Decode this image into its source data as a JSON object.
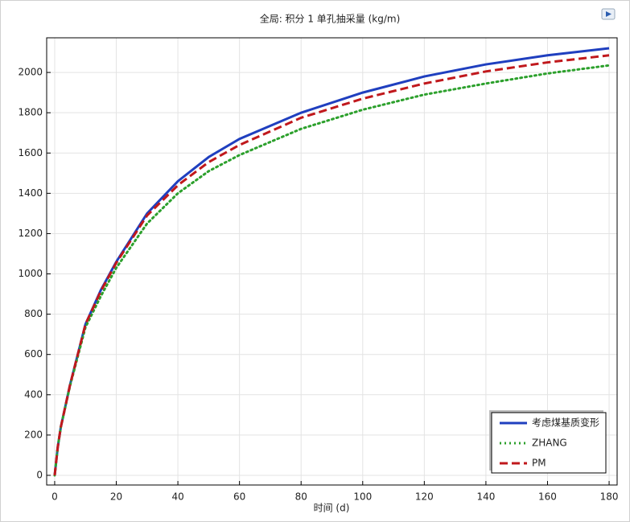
{
  "chart_data": {
    "type": "line",
    "title": "全局: 积分 1 单孔抽采量 (kg/m)",
    "x_label": "时间 (d)",
    "x": [
      0,
      1,
      2,
      5,
      10,
      15,
      20,
      30,
      40,
      50,
      60,
      80,
      100,
      120,
      140,
      160,
      180
    ],
    "series": [
      {
        "name": "考虑煤基质变形",
        "color": "#1f3fbf",
        "style": "solid",
        "values": [
          0,
          140,
          240,
          450,
          750,
          920,
          1060,
          1300,
          1460,
          1580,
          1670,
          1800,
          1900,
          1980,
          2040,
          2085,
          2120
        ]
      },
      {
        "name": "ZHANG",
        "color": "#2ca02c",
        "style": "dotted",
        "values": [
          0,
          140,
          240,
          445,
          735,
          890,
          1030,
          1250,
          1400,
          1510,
          1590,
          1720,
          1815,
          1890,
          1945,
          1995,
          2035
        ]
      },
      {
        "name": "PM",
        "color": "#c0181c",
        "style": "dashed",
        "values": [
          0,
          140,
          240,
          450,
          750,
          915,
          1055,
          1290,
          1440,
          1555,
          1640,
          1775,
          1870,
          1945,
          2005,
          2050,
          2085
        ]
      }
    ],
    "xlim": [
      -2.6,
      182.6
    ],
    "ylim": [
      -48,
      2172
    ],
    "xticks": [
      0,
      20,
      40,
      60,
      80,
      100,
      120,
      140,
      160,
      180
    ],
    "yticks": [
      0,
      200,
      400,
      600,
      800,
      1000,
      1200,
      1400,
      1600,
      1800,
      2000
    ],
    "grid": true,
    "legend": "lower-right"
  }
}
